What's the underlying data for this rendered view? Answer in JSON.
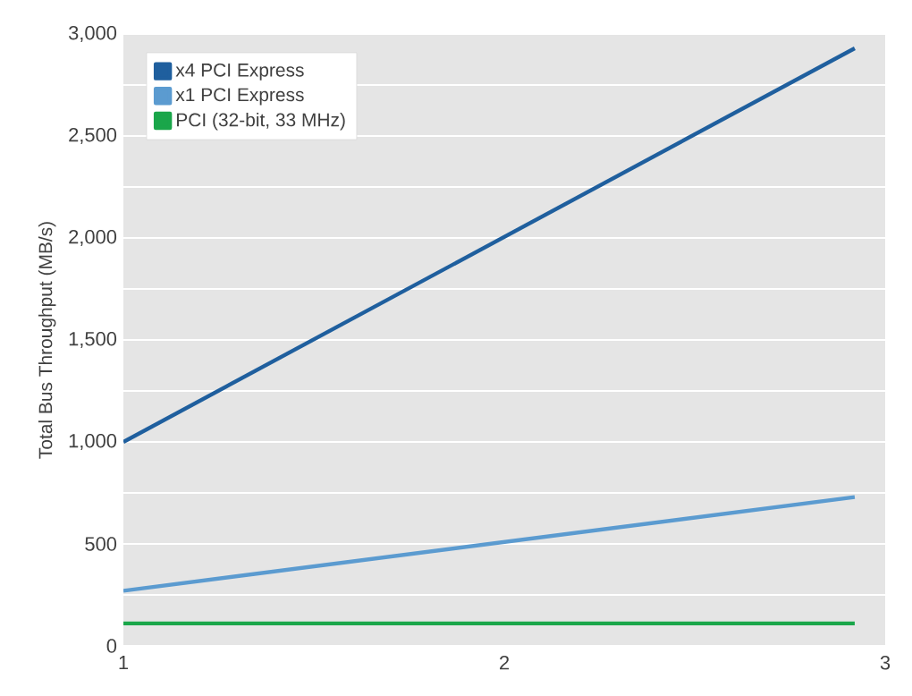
{
  "chart_data": {
    "type": "line",
    "ylabel": "Total Bus Throughput (MB/s)",
    "xlim": [
      1,
      3
    ],
    "xticks": [
      1,
      2,
      3
    ],
    "ylim": [
      0,
      3000
    ],
    "yticks": [
      0,
      {
        "value": 250,
        "label": null
      },
      {
        "value": 500,
        "label": "500"
      },
      {
        "value": 750,
        "label": null
      },
      {
        "value": 1000,
        "label": "1,000"
      },
      {
        "value": 1250,
        "label": null
      },
      {
        "value": 1500,
        "label": "1,500"
      },
      {
        "value": 1750,
        "label": null
      },
      {
        "value": 2000,
        "label": "2,000"
      },
      {
        "value": 2250,
        "label": null
      },
      {
        "value": 2500,
        "label": "2,500"
      },
      {
        "value": 2750,
        "label": null
      },
      {
        "value": 3000,
        "label": "3,000"
      }
    ],
    "grid": "y",
    "legend": "top left",
    "x": [
      1,
      2.92
    ],
    "series": [
      {
        "name": "x4 PCI Express",
        "color": "#1f5f9e",
        "values": [
          1000,
          2930
        ]
      },
      {
        "name": "x1 PCI Express",
        "color": "#5b9bd0",
        "values": [
          270,
          730
        ]
      },
      {
        "name": "PCI (32-bit, 33 MHz)",
        "color": "#1aa64a",
        "values": [
          110,
          110
        ]
      }
    ]
  }
}
